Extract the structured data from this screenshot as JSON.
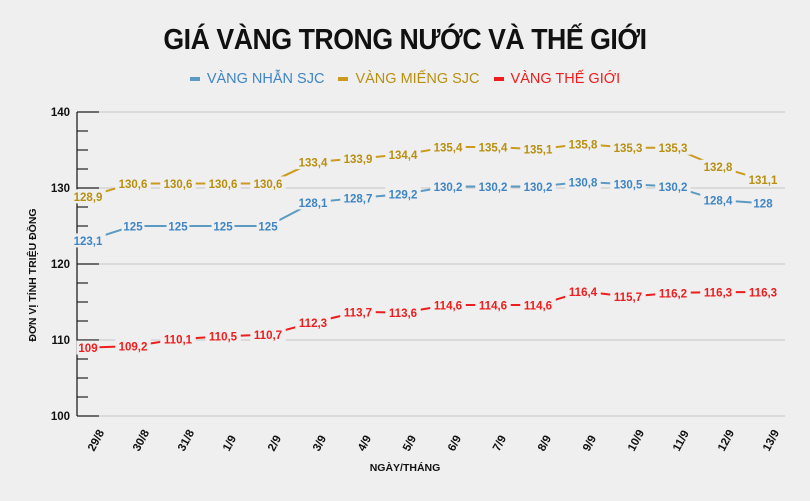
{
  "title": "GIÁ VÀNG TRONG NƯỚC VÀ THẾ GIỚI",
  "legend": [
    {
      "label": "VÀNG NHẪN SJC",
      "color": "#5b9ac2",
      "text_color": "#3f85c4"
    },
    {
      "label": "VÀNG MIẾNG SJC",
      "color": "#cc9a1c",
      "text_color": "#b8900f"
    },
    {
      "label": "VÀNG THẾ GIỚI",
      "color": "#ee1c1c",
      "text_color": "#ee1c1c"
    }
  ],
  "xlabel": "NGÀY/THÁNG",
  "ylabel": "ĐƠN VỊ TÍNH TRIỆU ĐỒNG",
  "chart_data": {
    "type": "line",
    "title": "GIÁ VÀNG TRONG NƯỚC VÀ THẾ GIỚI",
    "xlabel": "NGÀY/THÁNG",
    "ylabel": "ĐƠN VỊ TÍNH TRIỆU ĐỒNG",
    "categories": [
      "29/8",
      "30/8",
      "31/8",
      "1/9",
      "2/9",
      "3/9",
      "4/9",
      "5/9",
      "6/9",
      "7/9",
      "8/9",
      "9/9",
      "10/9",
      "11/9",
      "12/9",
      "13/9"
    ],
    "ylim": [
      100,
      140
    ],
    "yticks": [
      100,
      110,
      120,
      130,
      140
    ],
    "grid": true,
    "legend_position": "top",
    "series": [
      {
        "name": "VÀNG NHẪN SJC",
        "color": "#5b9ac2",
        "values": [
          123.1,
          125,
          125,
          125,
          125,
          128.1,
          128.7,
          129.2,
          130.2,
          130.2,
          130.2,
          130.8,
          130.5,
          130.2,
          128.4,
          128
        ],
        "labels": [
          "123,1",
          "125",
          "125",
          "125",
          "125",
          "128,1",
          "128,7",
          "129,2",
          "130,2",
          "130,2",
          "130,2",
          "130,8",
          "130,5",
          "130,2",
          "128,4",
          "128"
        ]
      },
      {
        "name": "VÀNG MIẾNG SJC",
        "color": "#cc9a1c",
        "values": [
          128.9,
          130.6,
          130.6,
          130.6,
          130.6,
          133.4,
          133.9,
          134.4,
          135.4,
          135.4,
          135.1,
          135.8,
          135.3,
          135.3,
          132.8,
          131.1
        ],
        "labels": [
          "128,9",
          "130,6",
          "130,6",
          "130,6",
          "130,6",
          "133,4",
          "133,9",
          "134,4",
          "135,4",
          "135,4",
          "135,1",
          "135,8",
          "135,3",
          "135,3",
          "132,8",
          "131,1"
        ]
      },
      {
        "name": "VÀNG THẾ GIỚI",
        "color": "#ee1c1c",
        "values": [
          109,
          109.2,
          110.1,
          110.5,
          110.7,
          112.3,
          113.7,
          113.6,
          114.6,
          114.6,
          114.6,
          116.4,
          115.7,
          116.2,
          116.3,
          116.3
        ],
        "labels": [
          "109",
          "109,2",
          "110,1",
          "110,5",
          "110,7",
          "112,3",
          "113,7",
          "113,6",
          "114,6",
          "114,6",
          "114,6",
          "116,4",
          "115,7",
          "116,2",
          "116,3",
          "116,3"
        ]
      }
    ]
  }
}
